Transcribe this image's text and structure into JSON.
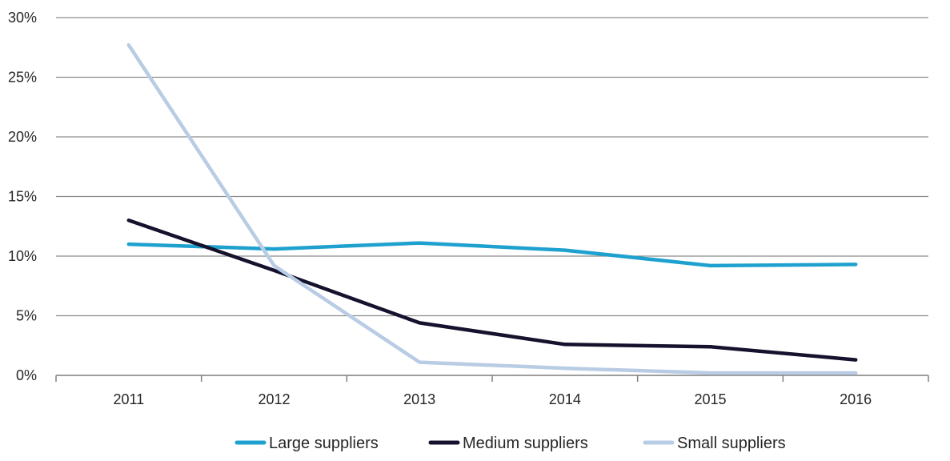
{
  "chart_data": {
    "type": "line",
    "categories": [
      "2011",
      "2012",
      "2013",
      "2014",
      "2015",
      "2016"
    ],
    "y_tick_labels": [
      "0%",
      "5%",
      "10%",
      "15%",
      "20%",
      "25%",
      "30%"
    ],
    "ylim": [
      0,
      30
    ],
    "y_unit": "%",
    "grid": "horizontal",
    "legend_position": "bottom",
    "series": [
      {
        "name": "Large suppliers",
        "color": "#1fa1cf",
        "values": [
          11.0,
          10.6,
          11.1,
          10.5,
          9.2,
          9.3
        ]
      },
      {
        "name": "Medium suppliers",
        "color": "#16122e",
        "values": [
          13.0,
          8.8,
          4.4,
          2.6,
          2.4,
          1.3
        ]
      },
      {
        "name": "Small suppliers",
        "color": "#b8cce4",
        "values": [
          27.7,
          9.2,
          1.1,
          0.6,
          0.2,
          0.2
        ]
      }
    ]
  }
}
